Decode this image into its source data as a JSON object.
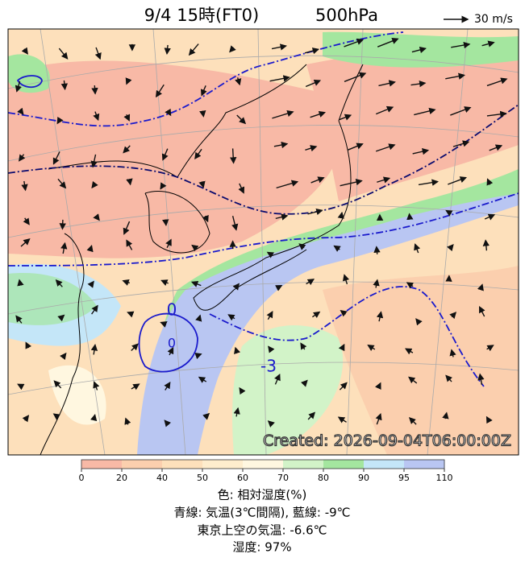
{
  "header": {
    "title": "9/4 15時(FT0)",
    "level": "500hPa",
    "scale_label": "30 m/s"
  },
  "map": {
    "created": "Created: 2026-09-04T06:00:00Z",
    "contour_labels": [
      "0",
      "0",
      "-3"
    ]
  },
  "colorbar": {
    "ticks": [
      0,
      20,
      40,
      50,
      60,
      70,
      80,
      90,
      95,
      110
    ],
    "colors": [
      "#f8b9a6",
      "#fbcfae",
      "#fde0bb",
      "#feedcd",
      "#fff7e0",
      "#d2f3c8",
      "#a4e69f",
      "#c4e6f8",
      "#b9c6f2"
    ]
  },
  "caption": [
    "色: 相対湿度(%)",
    "青線: 気温(3℃間隔), 藍線: -9℃",
    "東京上空の気温: -6.6℃",
    "湿度: 97%"
  ]
}
